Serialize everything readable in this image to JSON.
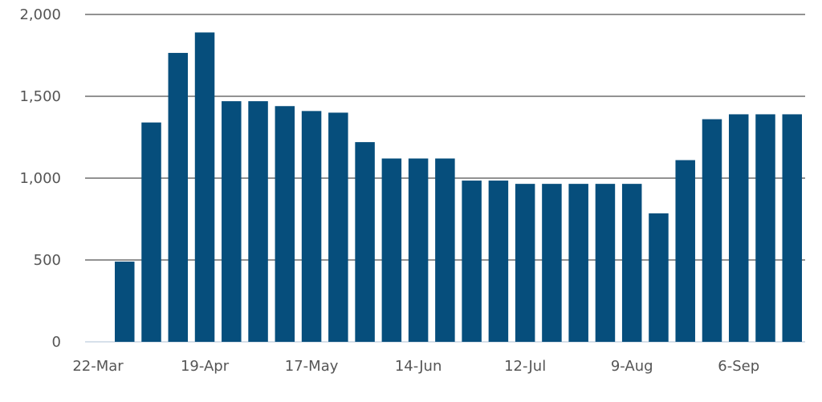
{
  "chart_data": {
    "type": "bar",
    "title": "",
    "xlabel": "",
    "ylabel": "",
    "ylim": [
      0,
      2000
    ],
    "y_ticks": [
      {
        "value": 0,
        "label": "0"
      },
      {
        "value": 500,
        "label": "500"
      },
      {
        "value": 1000,
        "label": "1,000"
      },
      {
        "value": 1500,
        "label": "1,500"
      },
      {
        "value": 2000,
        "label": "2,000"
      }
    ],
    "x_tick_labels": [
      "22-Mar",
      "19-Apr",
      "17-May",
      "14-Jun",
      "12-Jul",
      "9-Aug",
      "6-Sep"
    ],
    "categories": [
      "22-Mar",
      "29-Mar",
      "5-Apr",
      "12-Apr",
      "19-Apr",
      "26-Apr",
      "3-May",
      "10-May",
      "17-May",
      "24-May",
      "31-May",
      "7-Jun",
      "14-Jun",
      "21-Jun",
      "28-Jun",
      "5-Jul",
      "12-Jul",
      "19-Jul",
      "26-Jul",
      "2-Aug",
      "9-Aug",
      "16-Aug",
      "23-Aug",
      "30-Aug",
      "6-Sep",
      "13-Sep",
      "20-Sep"
    ],
    "values": [
      0,
      490,
      1340,
      1765,
      1890,
      1470,
      1470,
      1440,
      1410,
      1400,
      1220,
      1120,
      1120,
      1120,
      985,
      985,
      965,
      965,
      965,
      965,
      965,
      785,
      1110,
      1360,
      1390,
      1390,
      1390
    ],
    "grid": true,
    "legend": "none",
    "bar_color": "#064e7c",
    "grid_color": "#6e6e6e",
    "baseline_color": "#c9d6e3",
    "label_color": "#555555"
  }
}
